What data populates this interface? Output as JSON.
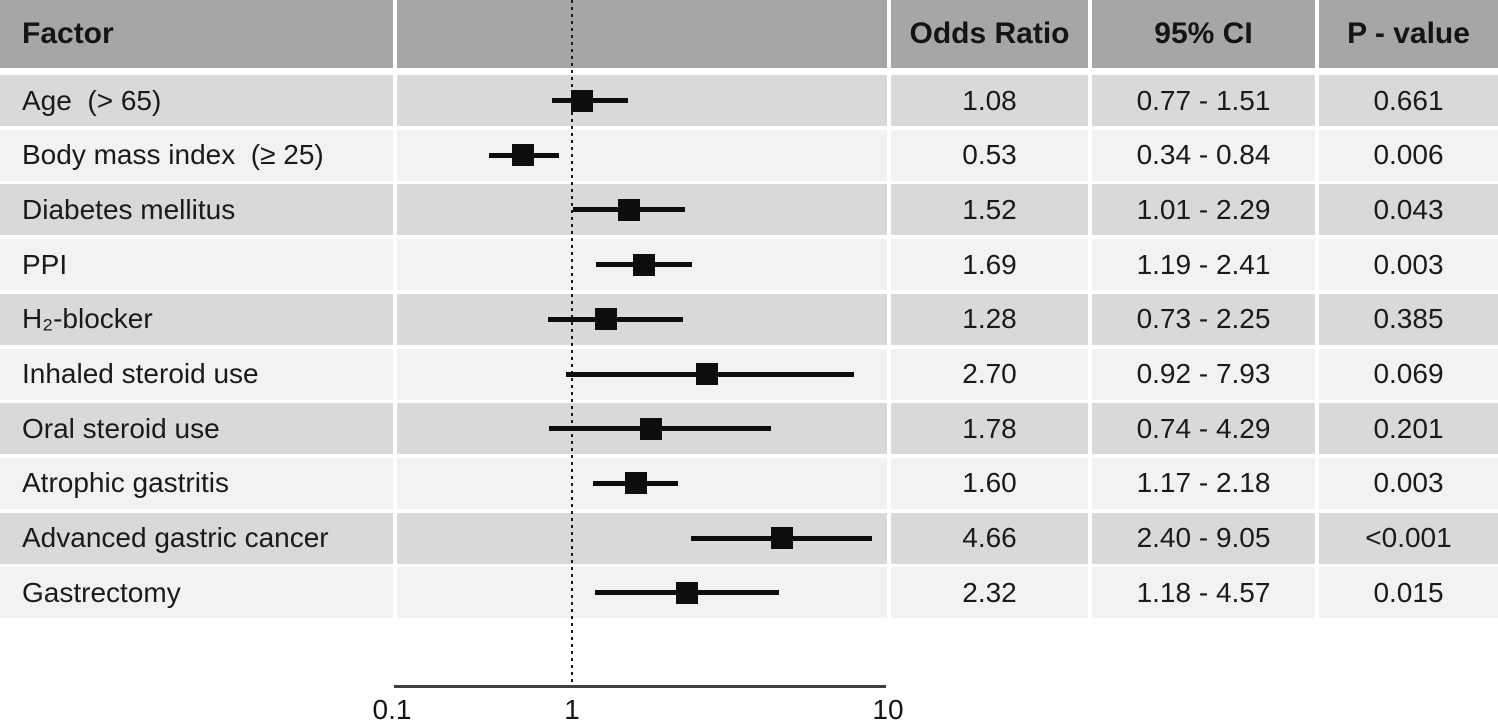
{
  "chart_data": {
    "type": "forest",
    "title": "",
    "columns": {
      "factor": "Factor",
      "plot": "",
      "odds_ratio": "Odds Ratio",
      "ci": "95% CI",
      "p_value": "P - value"
    },
    "x_axis": {
      "scale": "log",
      "min": 0.1,
      "max": 10,
      "reference_line": 1,
      "ticks": [
        0.1,
        1,
        10
      ],
      "tick_labels": [
        "0.1",
        "1",
        "10"
      ],
      "grid": false
    },
    "rows": [
      {
        "factor": "Age  (> 65)",
        "or": 1.08,
        "ci_low": 0.77,
        "ci_high": 1.51,
        "or_text": "1.08",
        "ci_text": "0.77 - 1.51",
        "p_text": "0.661"
      },
      {
        "factor": "Body mass index  (≥ 25)",
        "or": 0.53,
        "ci_low": 0.34,
        "ci_high": 0.84,
        "or_text": "0.53",
        "ci_text": "0.34 - 0.84",
        "p_text": "0.006"
      },
      {
        "factor": "Diabetes mellitus",
        "or": 1.52,
        "ci_low": 1.01,
        "ci_high": 2.29,
        "or_text": "1.52",
        "ci_text": "1.01 - 2.29",
        "p_text": "0.043"
      },
      {
        "factor": "PPI",
        "or": 1.69,
        "ci_low": 1.19,
        "ci_high": 2.41,
        "or_text": "1.69",
        "ci_text": "1.19 - 2.41",
        "p_text": "0.003"
      },
      {
        "factor": "H₂-blocker",
        "or": 1.28,
        "ci_low": 0.73,
        "ci_high": 2.25,
        "or_text": "1.28",
        "ci_text": "0.73 - 2.25",
        "p_text": "0.385"
      },
      {
        "factor": "Inhaled steroid use",
        "or": 2.7,
        "ci_low": 0.92,
        "ci_high": 7.93,
        "or_text": "2.70",
        "ci_text": "0.92 - 7.93",
        "p_text": "0.069"
      },
      {
        "factor": "Oral steroid use",
        "or": 1.78,
        "ci_low": 0.74,
        "ci_high": 4.29,
        "or_text": "1.78",
        "ci_text": "0.74 - 4.29",
        "p_text": "0.201"
      },
      {
        "factor": "Atrophic gastritis",
        "or": 1.6,
        "ci_low": 1.17,
        "ci_high": 2.18,
        "or_text": "1.60",
        "ci_text": "1.17 - 2.18",
        "p_text": "0.003"
      },
      {
        "factor": "Advanced gastric cancer",
        "or": 4.66,
        "ci_low": 2.4,
        "ci_high": 9.05,
        "or_text": "4.66",
        "ci_text": "2.40 - 9.05",
        "p_text": "<0.001"
      },
      {
        "factor": "Gastrectomy",
        "or": 2.32,
        "ci_low": 1.18,
        "ci_high": 4.57,
        "or_text": "2.32",
        "ci_text": "1.18 - 4.57",
        "p_text": "0.015"
      }
    ]
  },
  "colors": {
    "header_bg": "#a6a6a6",
    "row_dark": "#d9d9d9",
    "row_light": "#f2f2f2",
    "marker": "#0d0d0d",
    "text": "#1a1a1a",
    "axis": "#3f3f3f"
  }
}
